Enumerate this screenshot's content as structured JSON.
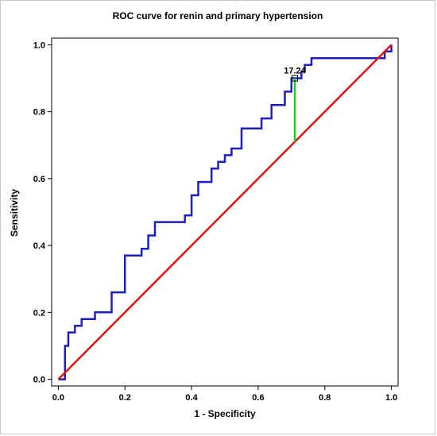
{
  "chart_data": {
    "type": "line",
    "title": "ROC curve for renin and primary hypertension",
    "xlabel": "1 - Specificity",
    "ylabel": "Sensitivity",
    "xlim": [
      -0.02,
      1.02
    ],
    "ylim": [
      -0.02,
      1.02
    ],
    "xticks": [
      0.0,
      0.2,
      0.4,
      0.6,
      0.8,
      1.0
    ],
    "xtick_labels": [
      "0.0",
      "0.2",
      "0.4",
      "0.6",
      "0.8",
      "1.0"
    ],
    "yticks": [
      0.0,
      0.2,
      0.4,
      0.6,
      0.8,
      1.0
    ],
    "ytick_labels": [
      "0.0",
      "0.2",
      "0.4",
      "0.6",
      "0.8",
      "1.0"
    ],
    "grid": false,
    "series": [
      {
        "color": "#1f1fbf",
        "x": [
          0.0,
          0.02,
          0.02,
          0.03,
          0.03,
          0.05,
          0.05,
          0.07,
          0.07,
          0.11,
          0.11,
          0.16,
          0.16,
          0.2,
          0.2,
          0.25,
          0.25,
          0.27,
          0.27,
          0.29,
          0.29,
          0.38,
          0.38,
          0.4,
          0.4,
          0.42,
          0.42,
          0.46,
          0.46,
          0.48,
          0.48,
          0.5,
          0.5,
          0.52,
          0.52,
          0.55,
          0.55,
          0.56,
          0.56,
          0.61,
          0.61,
          0.64,
          0.64,
          0.68,
          0.68,
          0.7,
          0.7,
          0.72,
          0.72,
          0.73,
          0.73,
          0.74,
          0.74,
          0.76,
          0.76,
          0.86,
          0.86,
          0.98,
          0.98,
          1.0,
          1.0
        ],
        "y": [
          0.0,
          0.0,
          0.1,
          0.1,
          0.14,
          0.14,
          0.16,
          0.16,
          0.18,
          0.18,
          0.2,
          0.2,
          0.26,
          0.26,
          0.37,
          0.37,
          0.39,
          0.39,
          0.43,
          0.43,
          0.47,
          0.47,
          0.49,
          0.49,
          0.55,
          0.55,
          0.59,
          0.59,
          0.63,
          0.63,
          0.65,
          0.65,
          0.67,
          0.67,
          0.69,
          0.69,
          0.75,
          0.75,
          0.75,
          0.75,
          0.78,
          0.78,
          0.82,
          0.82,
          0.86,
          0.86,
          0.9,
          0.9,
          0.9,
          0.9,
          0.92,
          0.92,
          0.94,
          0.94,
          0.96,
          0.96,
          0.96,
          0.96,
          0.98,
          0.98,
          1.0
        ]
      },
      {
        "color": "#dd1111",
        "x": [
          0.0,
          1.0
        ],
        "y": [
          0.0,
          1.0
        ]
      }
    ],
    "cutoff": {
      "label": "17.24",
      "x": 0.71,
      "y_low": 0.71,
      "y_high": 0.9,
      "color": "#22cc22"
    }
  }
}
